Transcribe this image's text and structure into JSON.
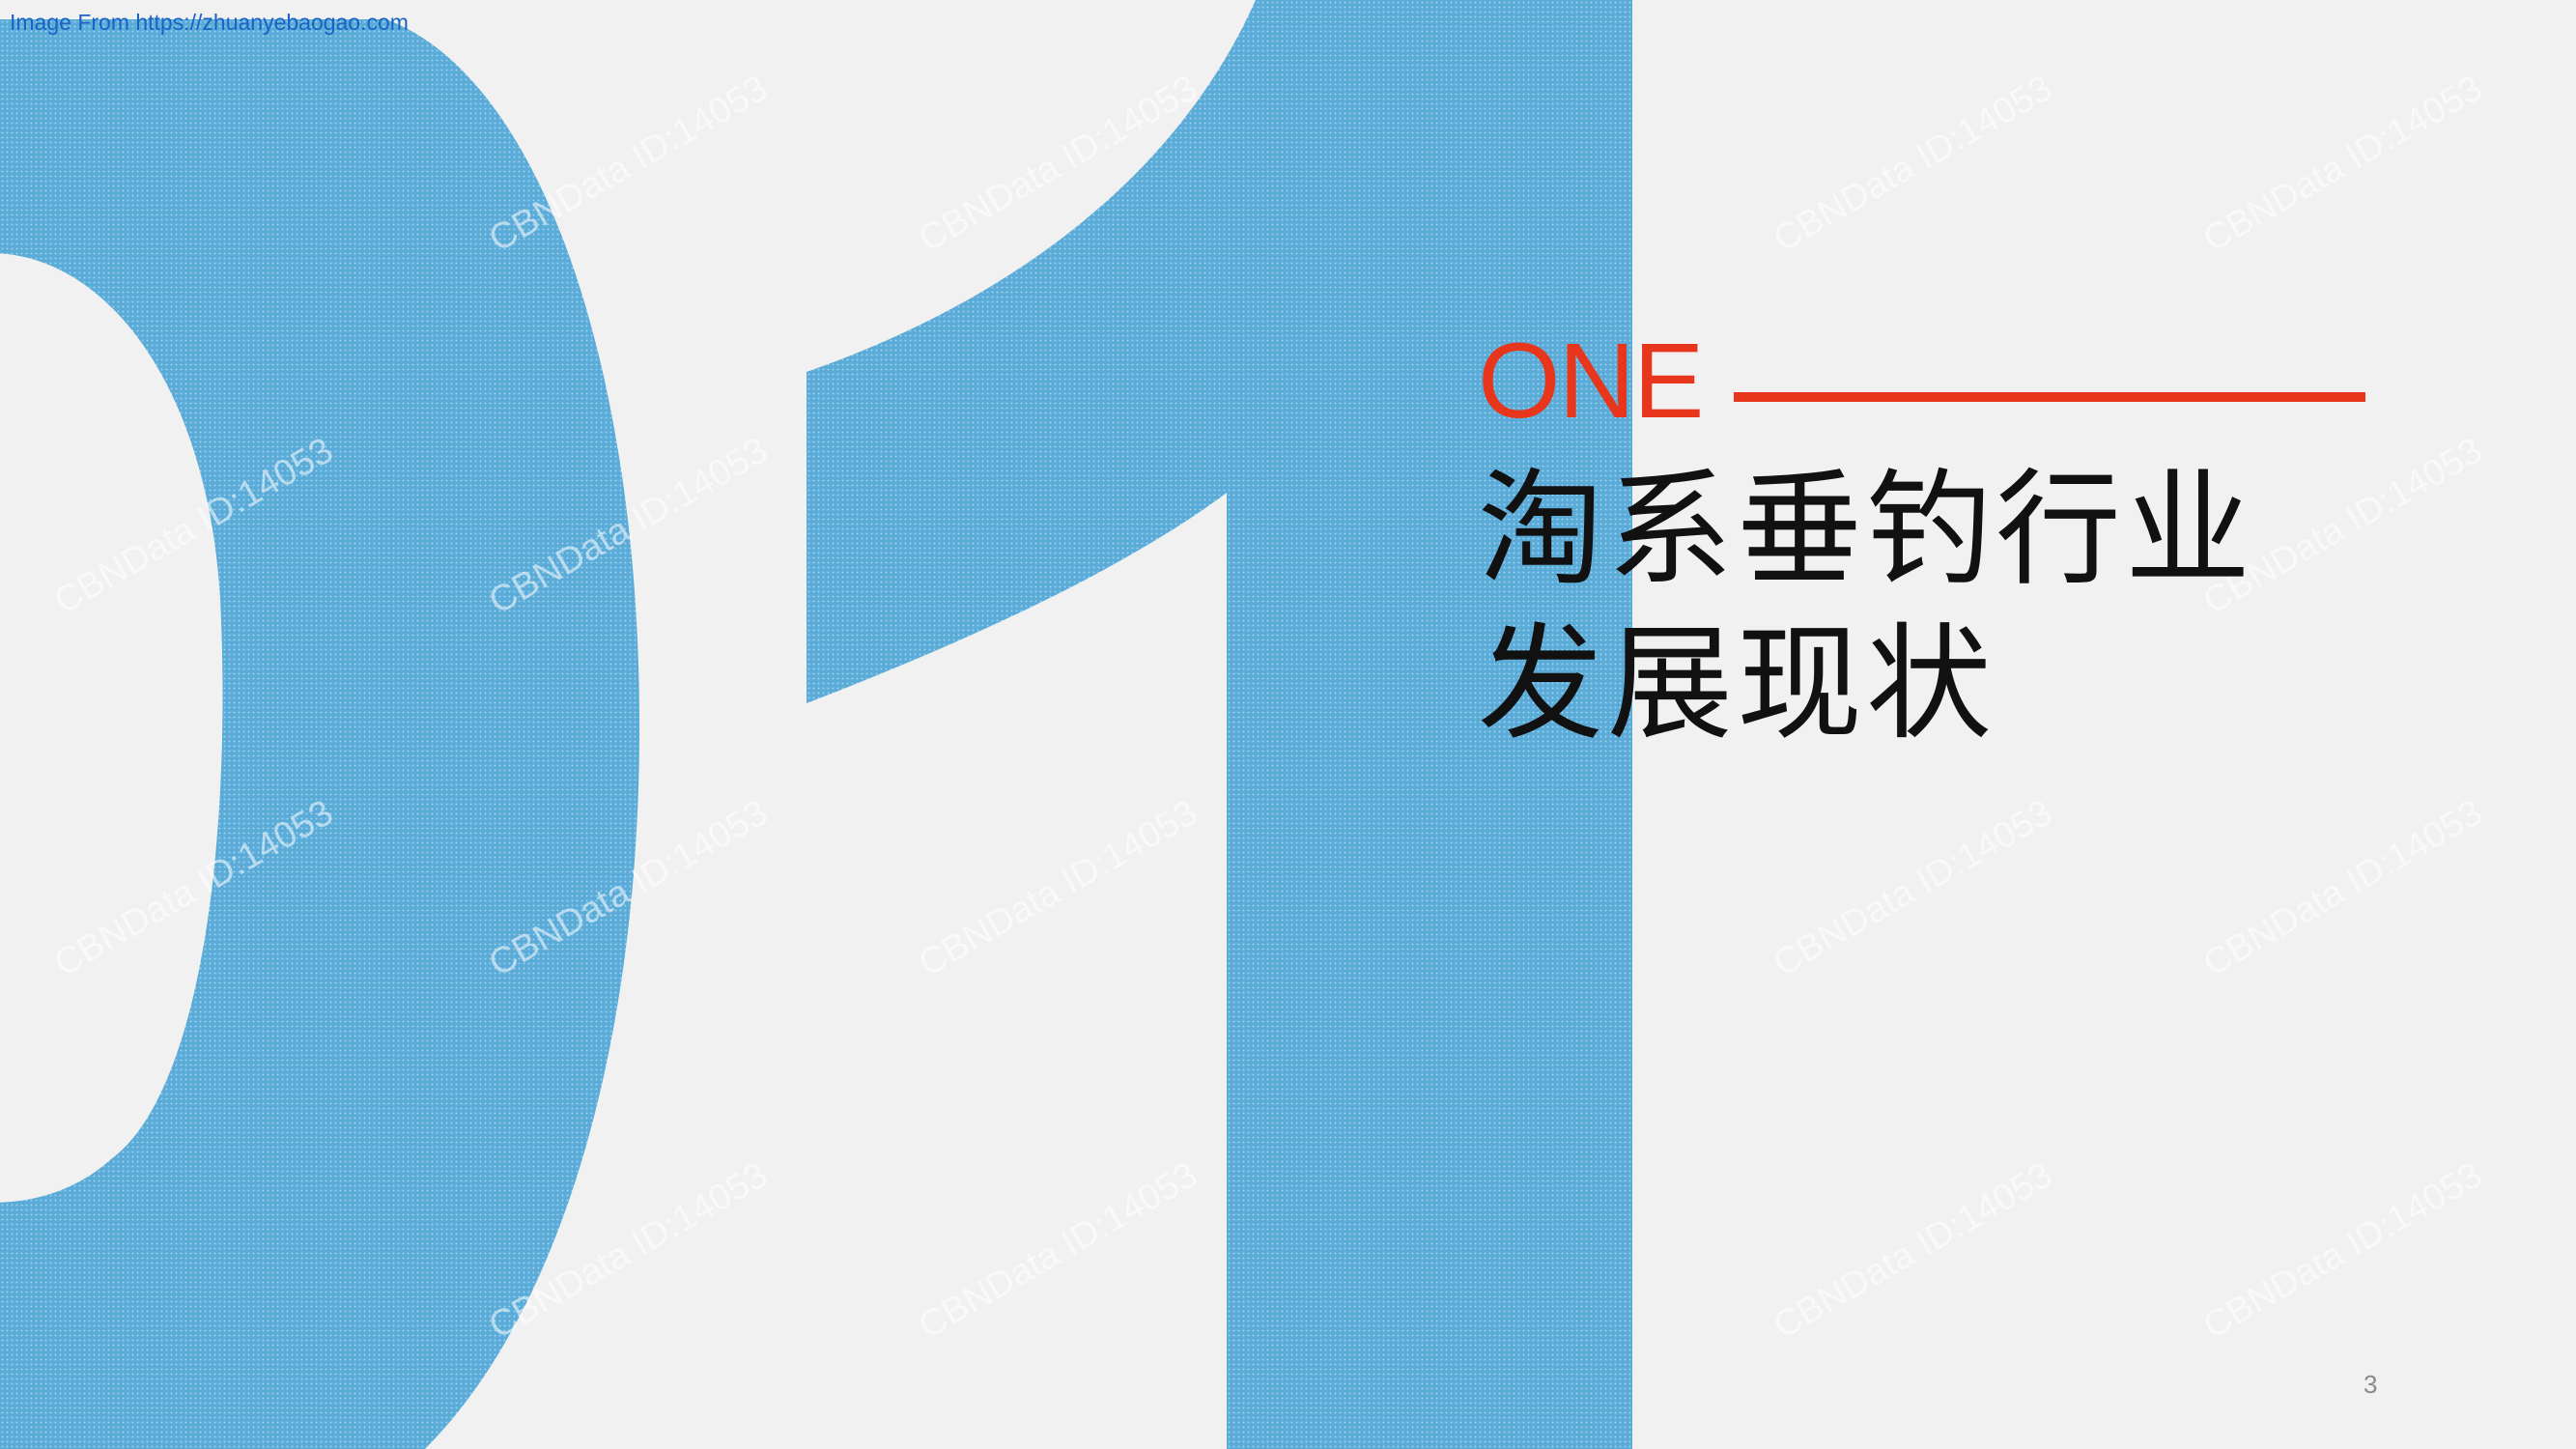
{
  "source": {
    "text": "Image From https://zhuanyebaogao.com"
  },
  "watermark": {
    "text": "CBNData ID:14053"
  },
  "section": {
    "label": "ONE",
    "title_line_1": "淘系垂钓行业",
    "title_line_2": "发展现状"
  },
  "page": {
    "number": "3"
  },
  "colors": {
    "background": "#f1f1f1",
    "numeral_blue": "#5aabd8",
    "accent_red": "#e8361c",
    "title_black": "#111111"
  },
  "decoration": {
    "numeral": "01",
    "pattern": "halftone-dots"
  }
}
